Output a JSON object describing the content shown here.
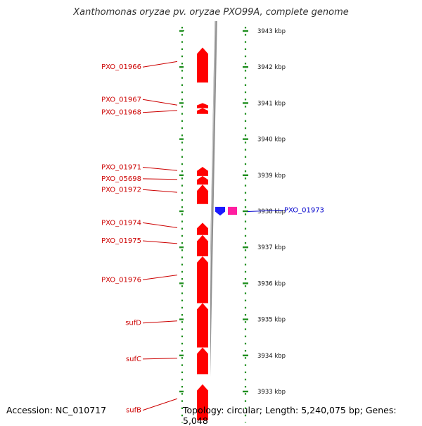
{
  "title": "Xanthomonas oryzae pv. oryzae PXO99A, complete genome",
  "accession": "Accession: NC_010717",
  "summary": "Topology: circular; Length: 5,240,075 bp; Genes: 5,048",
  "ruler": {
    "unit": "kbp",
    "ticks": [
      {
        "kbp": 3943,
        "label": "3943 kbp"
      },
      {
        "kbp": 3942,
        "label": "3942 kbp"
      },
      {
        "kbp": 3941,
        "label": "3941 kbp"
      },
      {
        "kbp": 3940,
        "label": "3940 kbp"
      },
      {
        "kbp": 3939,
        "label": "3939 kbp"
      },
      {
        "kbp": 3938,
        "label": "3938 kbp"
      },
      {
        "kbp": 3937,
        "label": "3937 kbp"
      },
      {
        "kbp": 3936,
        "label": "3936 kbp"
      },
      {
        "kbp": 3935,
        "label": "3935 kbp"
      },
      {
        "kbp": 3934,
        "label": "3934 kbp"
      },
      {
        "kbp": 3933,
        "label": "3933 kbp"
      }
    ]
  },
  "genes": [
    {
      "name": "PXO_01966",
      "strand": "reverse",
      "start_kbp": 3942.54,
      "end_kbp": 3941.57,
      "label_kbp": 3942.0,
      "color": "#ff0000"
    },
    {
      "name": "PXO_01967",
      "strand": "reverse",
      "start_kbp": 3941.0,
      "end_kbp": 3940.86,
      "label_kbp": 3941.1,
      "color": "#ff0000"
    },
    {
      "name": "PXO_01968",
      "strand": "reverse",
      "start_kbp": 3940.86,
      "end_kbp": 3940.7,
      "label_kbp": 3940.74,
      "color": "#ff0000"
    },
    {
      "name": "PXO_01971",
      "strand": "reverse",
      "start_kbp": 3939.23,
      "end_kbp": 3938.98,
      "label_kbp": 3939.22,
      "color": "#ff0000"
    },
    {
      "name": "PXO_05698",
      "strand": "reverse",
      "start_kbp": 3938.98,
      "end_kbp": 3938.74,
      "label_kbp": 3938.9,
      "color": "#ff0000"
    },
    {
      "name": "PXO_01972",
      "strand": "reverse",
      "start_kbp": 3938.74,
      "end_kbp": 3938.2,
      "label_kbp": 3938.6,
      "color": "#ff0000"
    },
    {
      "name": "PXO_01973",
      "strand": "forward",
      "start_kbp": 3938.12,
      "end_kbp": 3937.88,
      "label_kbp": 3938.03,
      "color": "#1a1aff"
    },
    {
      "name": "PXO_01974",
      "strand": "reverse",
      "start_kbp": 3937.68,
      "end_kbp": 3937.34,
      "label_kbp": 3937.68,
      "color": "#ff0000"
    },
    {
      "name": "PXO_01975",
      "strand": "reverse",
      "start_kbp": 3937.34,
      "end_kbp": 3936.75,
      "label_kbp": 3937.18,
      "color": "#ff0000"
    },
    {
      "name": "PXO_01976",
      "strand": "reverse",
      "start_kbp": 3936.75,
      "end_kbp": 3935.45,
      "label_kbp": 3936.1,
      "color": "#ff0000"
    },
    {
      "name": "sufD",
      "strand": "reverse",
      "start_kbp": 3935.45,
      "end_kbp": 3934.22,
      "label_kbp": 3934.9,
      "color": "#ff0000"
    },
    {
      "name": "sufC",
      "strand": "reverse",
      "start_kbp": 3934.22,
      "end_kbp": 3933.48,
      "label_kbp": 3933.9,
      "color": "#ff0000"
    },
    {
      "name": "sufB",
      "strand": "reverse",
      "start_kbp": 3933.2,
      "end_kbp": 3932.2,
      "label_kbp": 3932.48,
      "color": "#ff0000"
    }
  ],
  "cog_blocks": [
    {
      "start_kbp": 3941.0,
      "end_kbp": 3940.86,
      "color": "#ff1ea0"
    },
    {
      "start_kbp": 3939.23,
      "end_kbp": 3938.2,
      "color": "#ff1ea0"
    },
    {
      "start_kbp": 3938.12,
      "end_kbp": 3937.9,
      "color": "#ff1ea0",
      "track": "right"
    },
    {
      "start_kbp": 3937.68,
      "end_kbp": 3937.34,
      "color": "#9f9fbf"
    },
    {
      "start_kbp": 3937.68,
      "end_kbp": 3937.34,
      "color": "#4b3a99",
      "narrow": true
    },
    {
      "start_kbp": 3937.34,
      "end_kbp": 3936.75,
      "color": "#b0b0c4"
    },
    {
      "start_kbp": 3937.34,
      "end_kbp": 3936.75,
      "color": "#ff9a1e",
      "narrow": true
    },
    {
      "start_kbp": 3936.75,
      "end_kbp": 3935.45,
      "color": "#4a84b4"
    },
    {
      "start_kbp": 3935.45,
      "end_kbp": 3933.48,
      "color": "#bdb67a"
    },
    {
      "start_kbp": 3933.2,
      "end_kbp": 3932.2,
      "color": "#bdb67a"
    }
  ],
  "colors": {
    "reverse_gene": "#ff0000",
    "forward_gene": "#1a1aff",
    "label_reverse": "#cc0000",
    "label_forward": "#0000cc",
    "tick": "#1f8f1f",
    "backbone": "#909090"
  }
}
